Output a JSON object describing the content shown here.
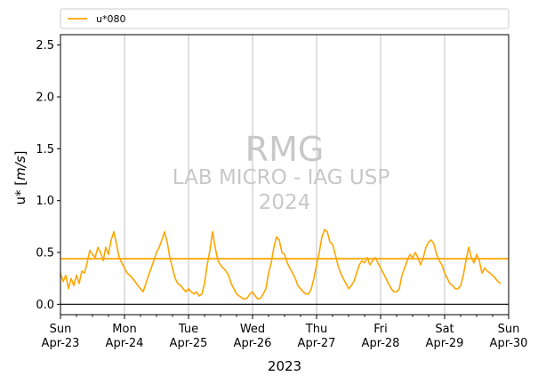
{
  "chart_data": {
    "type": "line",
    "xlabel": "2023",
    "ylabel_main": "u* [",
    "ylabel_unit": "m/s",
    "ylabel_end": "]",
    "ylim": [
      -0.1,
      2.6
    ],
    "xlim_days": [
      0,
      7
    ],
    "yticks": [
      0.0,
      0.5,
      1.0,
      1.5,
      2.0,
      2.5
    ],
    "ytick_labels": [
      "0.0",
      "0.5",
      "1.0",
      "1.5",
      "2.0",
      "2.5"
    ],
    "xticks": [
      {
        "day": "Sun",
        "date": "Apr-23"
      },
      {
        "day": "Mon",
        "date": "Apr-24"
      },
      {
        "day": "Tue",
        "date": "Apr-25"
      },
      {
        "day": "Wed",
        "date": "Apr-26"
      },
      {
        "day": "Thu",
        "date": "Apr-27"
      },
      {
        "day": "Fri",
        "date": "Apr-28"
      },
      {
        "day": "Sat",
        "date": "Apr-29"
      },
      {
        "day": "Sun",
        "date": "Apr-30"
      }
    ],
    "grid": "vertical",
    "legend": {
      "placement": "top",
      "entries": [
        "u*080"
      ]
    },
    "series": [
      {
        "name": "u*080",
        "color": "#FFA500",
        "x_start": "2023-04-23 00:00",
        "x_step_hours": 1,
        "values": [
          0.3,
          0.22,
          0.28,
          0.15,
          0.25,
          0.18,
          0.28,
          0.2,
          0.32,
          0.3,
          0.4,
          0.52,
          0.48,
          0.45,
          0.55,
          0.5,
          0.42,
          0.55,
          0.48,
          0.62,
          0.7,
          0.58,
          0.45,
          0.4,
          0.35,
          0.3,
          0.28,
          0.25,
          0.22,
          0.18,
          0.15,
          0.12,
          0.2,
          0.28,
          0.35,
          0.42,
          0.5,
          0.55,
          0.62,
          0.7,
          0.6,
          0.45,
          0.35,
          0.25,
          0.2,
          0.18,
          0.15,
          0.12,
          0.15,
          0.12,
          0.1,
          0.12,
          0.08,
          0.1,
          0.2,
          0.38,
          0.52,
          0.7,
          0.55,
          0.42,
          0.38,
          0.35,
          0.32,
          0.28,
          0.2,
          0.15,
          0.1,
          0.08,
          0.06,
          0.05,
          0.06,
          0.1,
          0.12,
          0.08,
          0.05,
          0.06,
          0.1,
          0.15,
          0.3,
          0.4,
          0.55,
          0.65,
          0.62,
          0.5,
          0.48,
          0.4,
          0.35,
          0.3,
          0.25,
          0.18,
          0.15,
          0.12,
          0.1,
          0.1,
          0.15,
          0.25,
          0.38,
          0.5,
          0.65,
          0.72,
          0.7,
          0.6,
          0.58,
          0.48,
          0.38,
          0.3,
          0.25,
          0.2,
          0.15,
          0.18,
          0.22,
          0.3,
          0.38,
          0.42,
          0.4,
          0.45,
          0.38,
          0.42,
          0.45,
          0.4,
          0.35,
          0.3,
          0.25,
          0.2,
          0.15,
          0.12,
          0.12,
          0.15,
          0.28,
          0.35,
          0.42,
          0.48,
          0.45,
          0.5,
          0.45,
          0.38,
          0.45,
          0.55,
          0.6,
          0.62,
          0.58,
          0.48,
          0.42,
          0.38,
          0.3,
          0.25,
          0.2,
          0.18,
          0.15,
          0.15,
          0.18,
          0.28,
          0.42,
          0.55,
          0.45,
          0.4,
          0.48,
          0.42,
          0.3,
          0.35,
          0.32,
          0.3,
          0.28,
          0.25,
          0.22,
          0.2
        ]
      },
      {
        "name": "",
        "color": "#FFA500",
        "constant": 0.44
      }
    ],
    "zero_line": 0.0,
    "watermark": [
      "RMG",
      "LAB MICRO - IAG USP",
      "2024"
    ]
  }
}
